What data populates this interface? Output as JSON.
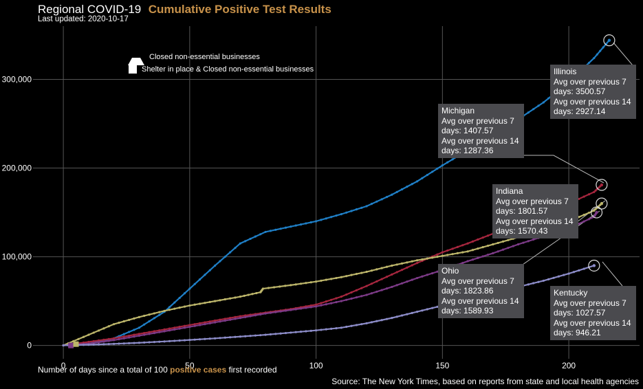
{
  "header": {
    "title": "Regional COVID-19",
    "title_accent": "Cumulative Positive Test Results",
    "subtitle": "Last updated: 2020-10-17"
  },
  "xaxis_label": {
    "prefix": "Number of days since a total of 100 ",
    "highlight": "positive cases",
    "suffix": " first recorded"
  },
  "source": "Source: The New York Times, based on reports from state and local health agencies",
  "legend": {
    "triangle": "Closed non-essential businesses",
    "square": "Shelter in place & Closed non-essential businesses"
  },
  "colors": {
    "Illinois": "#1f7fc6",
    "Michigan": "#a6263e",
    "Indiana": "#bcb56a",
    "Ohio": "#7c3a87",
    "Kentucky": "#8c8cc8",
    "accent": "#c8924a",
    "tooltip_bg": "#4a4a4e"
  },
  "tooltips": [
    {
      "state": "Illinois",
      "l1": "Avg over previous 7",
      "l2": "days: 3500.57",
      "l3": "Avg over previous 14",
      "l4": "days: 2927.14"
    },
    {
      "state": "Michigan",
      "l1": "Avg over previous 7",
      "l2": "days: 1407.57",
      "l3": "Avg over previous 14",
      "l4": "days: 1287.36"
    },
    {
      "state": "Indiana",
      "l1": "Avg over previous 7",
      "l2": "days: 1801.57",
      "l3": "Avg over previous 14",
      "l4": "days: 1570.43"
    },
    {
      "state": "Ohio",
      "l1": "Avg over previous 7",
      "l2": "days: 1823.86",
      "l3": "Avg over previous 14",
      "l4": "days: 1589.93"
    },
    {
      "state": "Kentucky",
      "l1": "Avg over previous 7",
      "l2": "days: 1027.57",
      "l3": "Avg over previous 14",
      "l4": "days: 946.21"
    }
  ],
  "chart_data": {
    "type": "line",
    "xlim": [
      -12,
      228
    ],
    "ylim": [
      -15000,
      360000
    ],
    "xticks": [
      0,
      50,
      100,
      150,
      200
    ],
    "yticks": [
      0,
      100000,
      200000,
      300000
    ],
    "ytick_labels": [
      "0",
      "100,000",
      "200,000",
      "300,000"
    ],
    "grid": true,
    "legend_position": "top-left",
    "series": [
      {
        "name": "Illinois",
        "x": [
          0,
          10,
          20,
          30,
          40,
          50,
          60,
          70,
          80,
          90,
          100,
          110,
          120,
          130,
          140,
          150,
          160,
          170,
          180,
          190,
          200,
          210,
          216
        ],
        "y": [
          100,
          2000,
          8000,
          20000,
          38000,
          64000,
          90000,
          115000,
          128000,
          134000,
          140000,
          148000,
          157000,
          170000,
          185000,
          203000,
          220000,
          237000,
          255000,
          274000,
          297000,
          324000,
          344000
        ]
      },
      {
        "name": "Michigan",
        "x": [
          0,
          10,
          20,
          30,
          40,
          50,
          60,
          70,
          80,
          90,
          100,
          110,
          120,
          130,
          140,
          150,
          160,
          170,
          180,
          190,
          200,
          210,
          213
        ],
        "y": [
          100,
          4000,
          8000,
          13000,
          18000,
          23000,
          28000,
          33000,
          37000,
          41000,
          46000,
          55000,
          67000,
          80000,
          93000,
          105000,
          115000,
          126000,
          137000,
          149000,
          160000,
          173000,
          181000
        ]
      },
      {
        "name": "Indiana",
        "x": [
          0,
          10,
          20,
          30,
          40,
          50,
          60,
          70,
          78,
          79,
          90,
          100,
          110,
          120,
          130,
          140,
          150,
          160,
          170,
          180,
          190,
          200,
          210,
          213
        ],
        "y": [
          100,
          12000,
          24000,
          32000,
          39000,
          45000,
          50000,
          55000,
          60000,
          64000,
          68000,
          72000,
          77000,
          83000,
          90000,
          96000,
          101000,
          106000,
          114000,
          122000,
          131000,
          140000,
          152000,
          160000
        ]
      },
      {
        "name": "Ohio",
        "x": [
          0,
          10,
          20,
          30,
          40,
          50,
          60,
          70,
          80,
          90,
          100,
          110,
          120,
          130,
          140,
          150,
          160,
          170,
          180,
          190,
          200,
          210,
          211
        ],
        "y": [
          100,
          2000,
          6000,
          11000,
          16000,
          21000,
          26000,
          31000,
          36000,
          40000,
          44000,
          50000,
          57000,
          66000,
          76000,
          85000,
          95000,
          104000,
          114000,
          123000,
          132000,
          145000,
          150000
        ]
      },
      {
        "name": "Kentucky",
        "x": [
          0,
          10,
          20,
          30,
          40,
          50,
          60,
          70,
          80,
          90,
          100,
          110,
          120,
          130,
          140,
          150,
          160,
          170,
          180,
          190,
          200,
          210
        ],
        "y": [
          100,
          800,
          1800,
          3000,
          4500,
          6200,
          8000,
          10000,
          12000,
          14500,
          17000,
          20000,
          25000,
          31000,
          38000,
          45000,
          52000,
          59000,
          66000,
          73000,
          81000,
          90000
        ]
      }
    ]
  }
}
